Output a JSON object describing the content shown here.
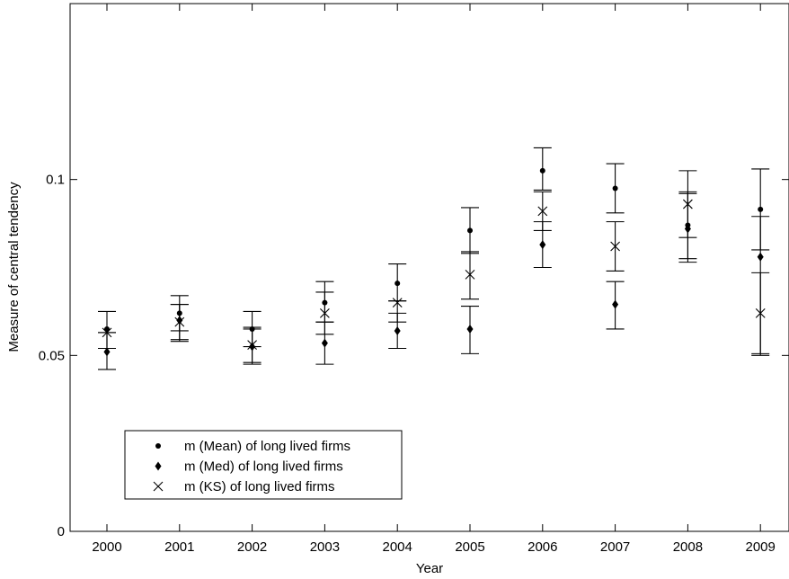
{
  "chart_data": {
    "type": "scatter",
    "title": "",
    "xlabel": "Year",
    "ylabel": "Measure of central tendency",
    "categories": [
      "2000",
      "2001",
      "2002",
      "2003",
      "2004",
      "2005",
      "2006",
      "2007",
      "2008",
      "2009"
    ],
    "ylim": [
      0,
      0.15
    ],
    "y_ticks": [
      "0",
      "0.05",
      "0.1"
    ],
    "legend_position": "bottom-left",
    "grid": false,
    "series": [
      {
        "name": "m (Mean) of long lived firms",
        "marker": "dot",
        "values": [
          0.0575,
          0.062,
          0.0575,
          0.065,
          0.0705,
          0.0855,
          0.1025,
          0.0975,
          0.087,
          0.0915
        ],
        "err_low": [
          0.052,
          0.057,
          0.0525,
          0.0595,
          0.0655,
          0.079,
          0.097,
          0.0905,
          0.0835,
          0.08
        ],
        "err_high": [
          0.0625,
          0.067,
          0.0625,
          0.071,
          0.076,
          0.092,
          0.109,
          0.1045,
          0.1025,
          0.103
        ]
      },
      {
        "name": "m (Med) of long lived firms",
        "marker": "diamond",
        "values": [
          0.051,
          0.06,
          0.0525,
          0.0535,
          0.057,
          0.0575,
          0.0815,
          0.0645,
          0.086,
          0.078
        ],
        "err_low": [
          0.046,
          0.0545,
          0.0475,
          0.0475,
          0.052,
          0.0505,
          0.075,
          0.0575,
          0.0765,
          0.0505
        ],
        "err_high": [
          0.0565,
          0.0645,
          0.058,
          0.0595,
          0.062,
          0.064,
          0.088,
          0.071,
          0.096,
          0.0895
        ]
      },
      {
        "name": "m (KS) of long lived firms",
        "marker": "cross",
        "values": [
          0.0565,
          0.0595,
          0.053,
          0.062,
          0.065,
          0.073,
          0.091,
          0.081,
          0.093,
          0.062
        ],
        "err_low": [
          0.052,
          0.054,
          0.048,
          0.056,
          0.0595,
          0.066,
          0.0855,
          0.074,
          0.0775,
          0.05
        ],
        "err_high": [
          0.0565,
          0.0645,
          0.0575,
          0.068,
          0.0655,
          0.0795,
          0.0965,
          0.088,
          0.0965,
          0.0735
        ]
      }
    ]
  }
}
